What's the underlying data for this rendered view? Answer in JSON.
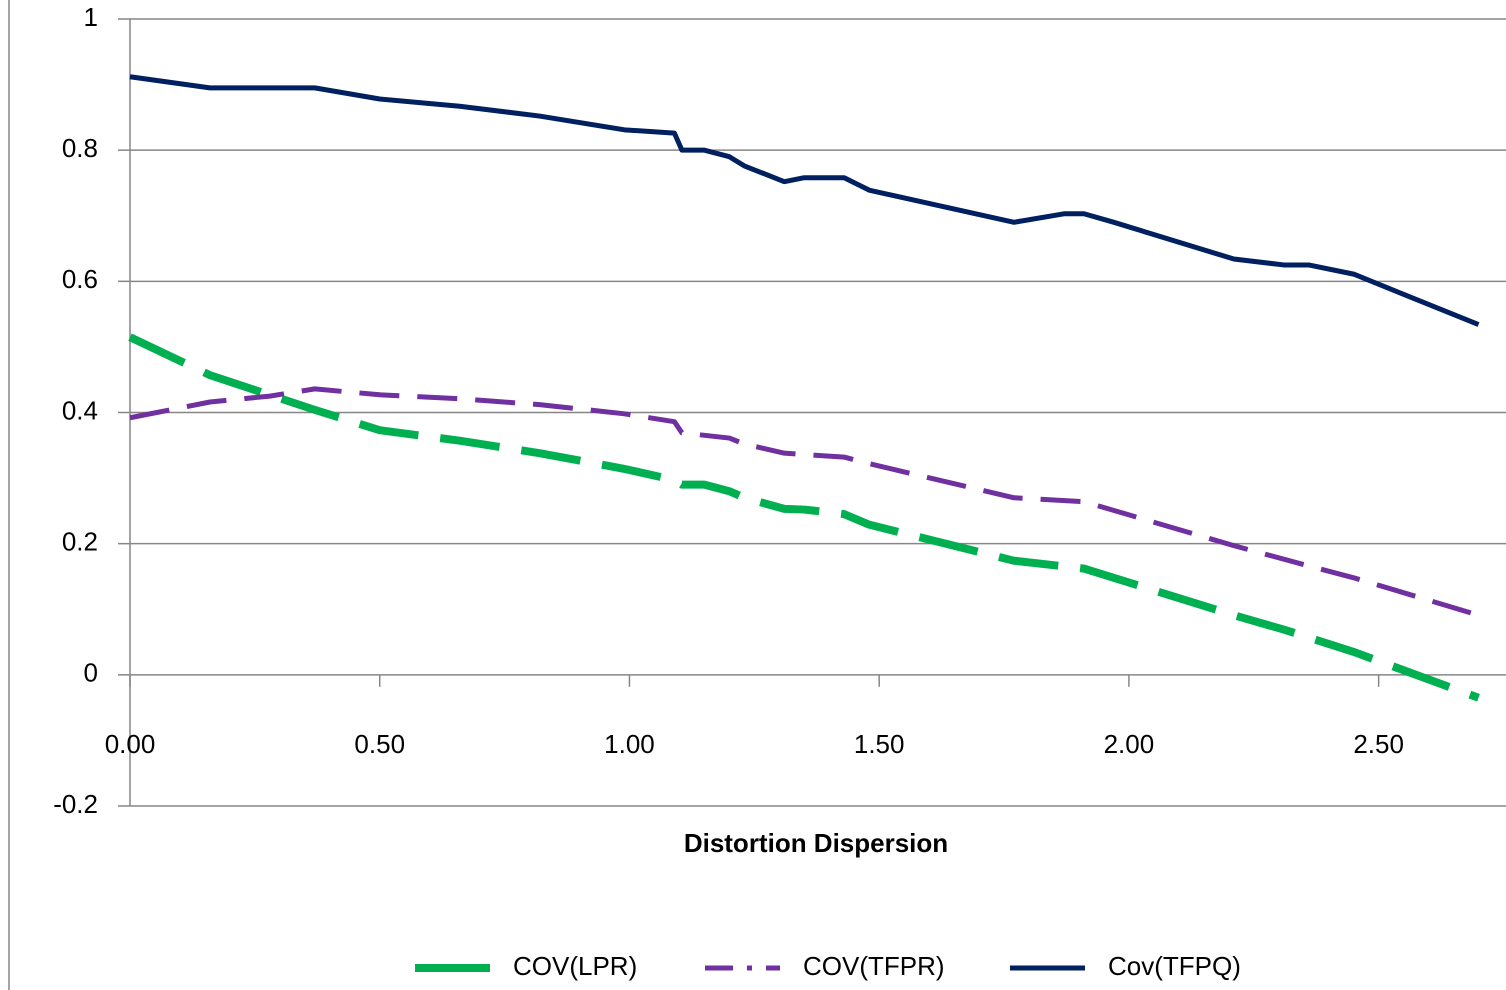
{
  "chart_data": {
    "type": "line",
    "x_label": "Distortion Dispersion",
    "xlim": [
      0,
      2.755
    ],
    "ylim": [
      -0.2,
      1
    ],
    "xticks": [
      {
        "value": 0,
        "label": "0.00"
      },
      {
        "value": 0.5,
        "label": "0.50"
      },
      {
        "value": 1,
        "label": "1.00"
      },
      {
        "value": 1.5,
        "label": "1.50"
      },
      {
        "value": 2,
        "label": "2.00"
      },
      {
        "value": 2.5,
        "label": "2.50"
      }
    ],
    "yticks": [
      -0.2,
      0,
      0.2,
      0.4,
      0.6,
      0.8,
      1
    ],
    "grid": true,
    "legend": "bottom",
    "series": [
      {
        "name": "COV(LPR)",
        "color": "#00b050",
        "dash": "long",
        "x": [
          0,
          0.16,
          0.37,
          0.5,
          0.66,
          0.82,
          0.99,
          1.09,
          1.105,
          1.15,
          1.2,
          1.23,
          1.31,
          1.35,
          1.43,
          1.48,
          1.77,
          1.91,
          2.21,
          2.31,
          2.45,
          2.7
        ],
        "values": [
          0.515,
          0.457,
          0.404,
          0.373,
          0.357,
          0.338,
          0.314,
          0.297,
          0.29,
          0.29,
          0.28,
          0.27,
          0.253,
          0.252,
          0.245,
          0.229,
          0.174,
          0.162,
          0.091,
          0.069,
          0.035,
          -0.035
        ]
      },
      {
        "name": "COV(TFPR)",
        "color": "#7030a0",
        "dash": "dashdot",
        "x": [
          0,
          0.16,
          0.28,
          0.37,
          0.5,
          0.66,
          0.82,
          0.99,
          1.09,
          1.105,
          1.2,
          1.23,
          1.31,
          1.43,
          1.48,
          1.77,
          1.91,
          2.21,
          2.36,
          2.45,
          2.7
        ],
        "values": [
          0.392,
          0.416,
          0.425,
          0.436,
          0.427,
          0.421,
          0.412,
          0.398,
          0.386,
          0.369,
          0.361,
          0.352,
          0.338,
          0.332,
          0.322,
          0.27,
          0.264,
          0.197,
          0.166,
          0.148,
          0.091
        ]
      },
      {
        "name": "Cov(TFPQ)",
        "color": "#002060",
        "dash": "solid",
        "x": [
          0,
          0.16,
          0.37,
          0.5,
          0.66,
          0.82,
          0.99,
          1.09,
          1.105,
          1.15,
          1.2,
          1.23,
          1.31,
          1.35,
          1.43,
          1.48,
          1.77,
          1.87,
          1.91,
          1.97,
          2.21,
          2.31,
          2.36,
          2.45,
          2.7
        ],
        "values": [
          0.912,
          0.895,
          0.895,
          0.878,
          0.867,
          0.852,
          0.831,
          0.826,
          0.8,
          0.8,
          0.79,
          0.776,
          0.752,
          0.758,
          0.758,
          0.739,
          0.69,
          0.703,
          0.703,
          0.69,
          0.634,
          0.625,
          0.625,
          0.611,
          0.534
        ]
      }
    ]
  }
}
